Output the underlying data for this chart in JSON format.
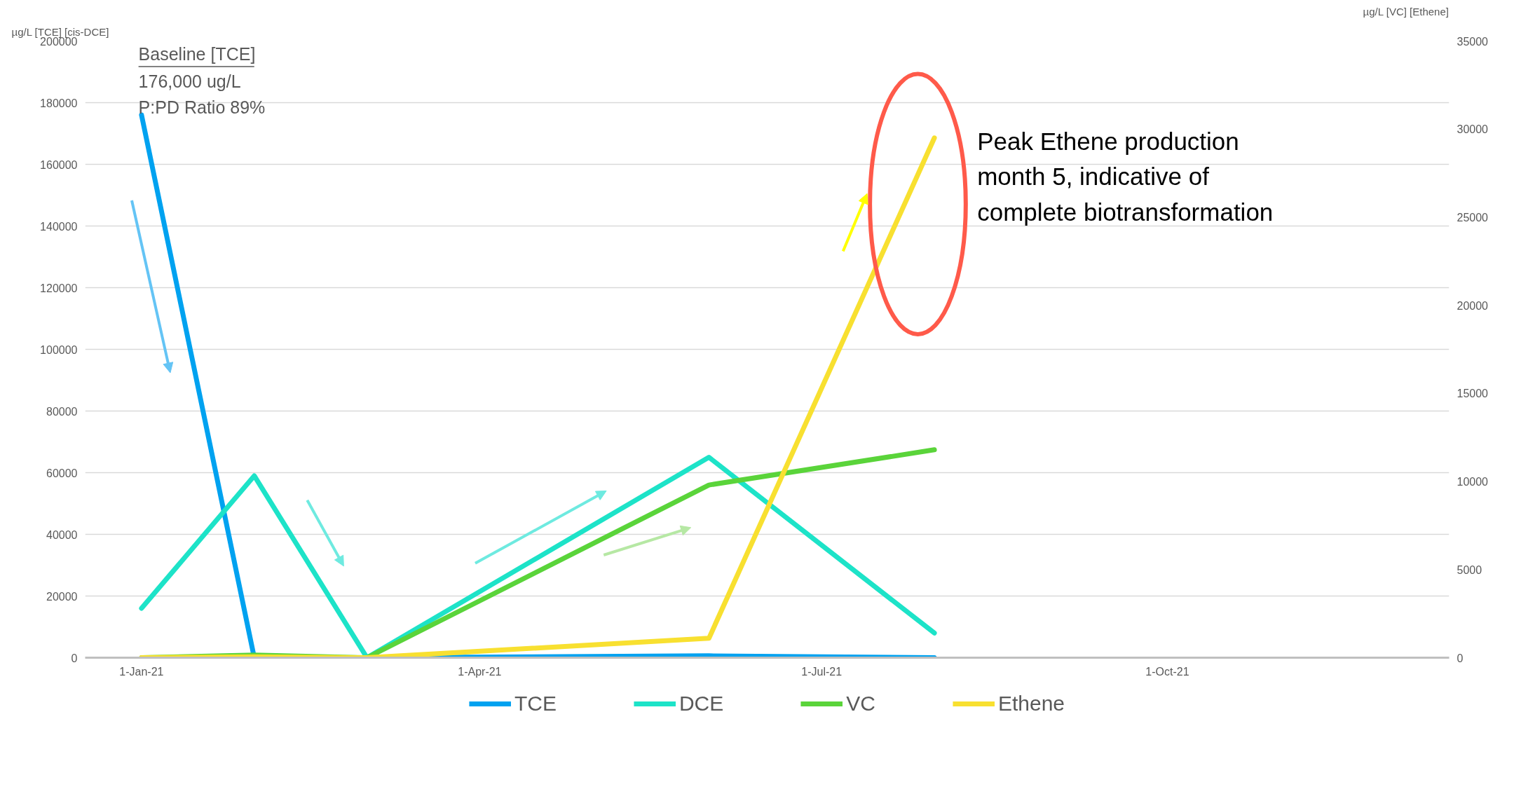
{
  "chart_data": {
    "type": "line",
    "ylabel": "µg/L [TCE] [cis-DCE]",
    "y2label": "µg/L [VC] [Ethene]",
    "x": [
      "2021-01-01",
      "2021-01-31",
      "2021-03-02",
      "2021-06-01",
      "2021-07-31"
    ],
    "series": [
      {
        "name": "TCE",
        "color": "#00a2f0",
        "values": [
          176000,
          0,
          0,
          600,
          0
        ]
      },
      {
        "name": "DCE",
        "color": "#1de3c8",
        "values": [
          16000,
          59000,
          0,
          65000,
          8000
        ]
      },
      {
        "name": "VC",
        "color": "#5ad43a",
        "axis": "y2",
        "values": [
          0,
          150,
          0,
          9800,
          11800
        ]
      },
      {
        "name": "Ethene",
        "color": "#f8e030",
        "axis": "y2",
        "values": [
          0,
          50,
          0,
          1100,
          29500
        ]
      }
    ],
    "xlim": [
      "2020-12-17",
      "2021-12-15"
    ],
    "xticks": [
      {
        "value": "2021-01-01",
        "label": "1-Jan-21"
      },
      {
        "value": "2021-04-01",
        "label": "1-Apr-21"
      },
      {
        "value": "2021-07-01",
        "label": "1-Jul-21"
      },
      {
        "value": "2021-10-01",
        "label": "1-Oct-21"
      }
    ],
    "ylim": [
      0,
      200000
    ],
    "yticks": [
      0,
      20000,
      40000,
      60000,
      80000,
      100000,
      120000,
      140000,
      160000,
      180000,
      200000
    ],
    "y2lim": [
      0,
      35000
    ],
    "y2ticks": [
      0,
      5000,
      10000,
      15000,
      20000,
      25000,
      30000,
      35000
    ],
    "annotations": [
      "Baseline [TCE]",
      "176,000 ug/L",
      "P:PD Ratio 89%",
      "Peak Ethene production month 5, indicative of complete biotransformation"
    ],
    "grid": "y",
    "legend": "bottom",
    "marker": "none",
    "line_style": "solid"
  }
}
